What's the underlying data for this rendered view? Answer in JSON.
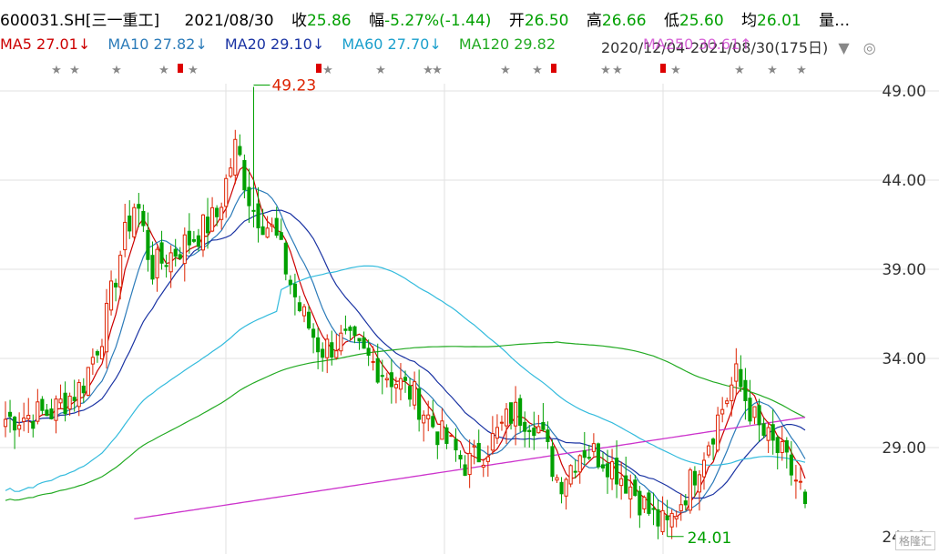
{
  "header": {
    "code": "600031.SH",
    "name": "[三一重工]",
    "date": "2021/08/30",
    "close_label": "收",
    "close": "25.86",
    "change_label": "幅",
    "change": "-5.27%(-1.44)",
    "open_label": "开",
    "open": "26.50",
    "high_label": "高",
    "high": "26.66",
    "low_label": "低",
    "low": "25.60",
    "avg_label": "均",
    "avg": "26.01",
    "more_label": "量…"
  },
  "ma": {
    "ma5": "MA5 27.01↓",
    "ma10": "MA10 27.82↓",
    "ma20": "MA20 29.10↓",
    "ma60": "MA60 27.70↓",
    "ma120": "MA120 29.82",
    "range": "2020/12/04-2021/08/30(175日)",
    "overlap": "MA250 30.61↑",
    "dropdown": "▼",
    "settings": "◎"
  },
  "colors": {
    "up": "#dd2200",
    "down": "#00a000",
    "ma5": "#cc0000",
    "ma10": "#2b7bb9",
    "ma20": "#1a33a3",
    "ma60": "#33bbdd",
    "ma120": "#22aa22",
    "ma250": "#cc33cc",
    "grid": "#e2e2e2"
  },
  "watermark": "格隆汇",
  "chart_data": {
    "type": "candlestick",
    "ylim": [
      24,
      50
    ],
    "yticks": [
      "49.00",
      "44.00",
      "39.00",
      "34.00",
      "29.00",
      "24.00"
    ],
    "annotations": {
      "high": "49.23",
      "low": "24.01"
    },
    "num_bars": 175
  }
}
